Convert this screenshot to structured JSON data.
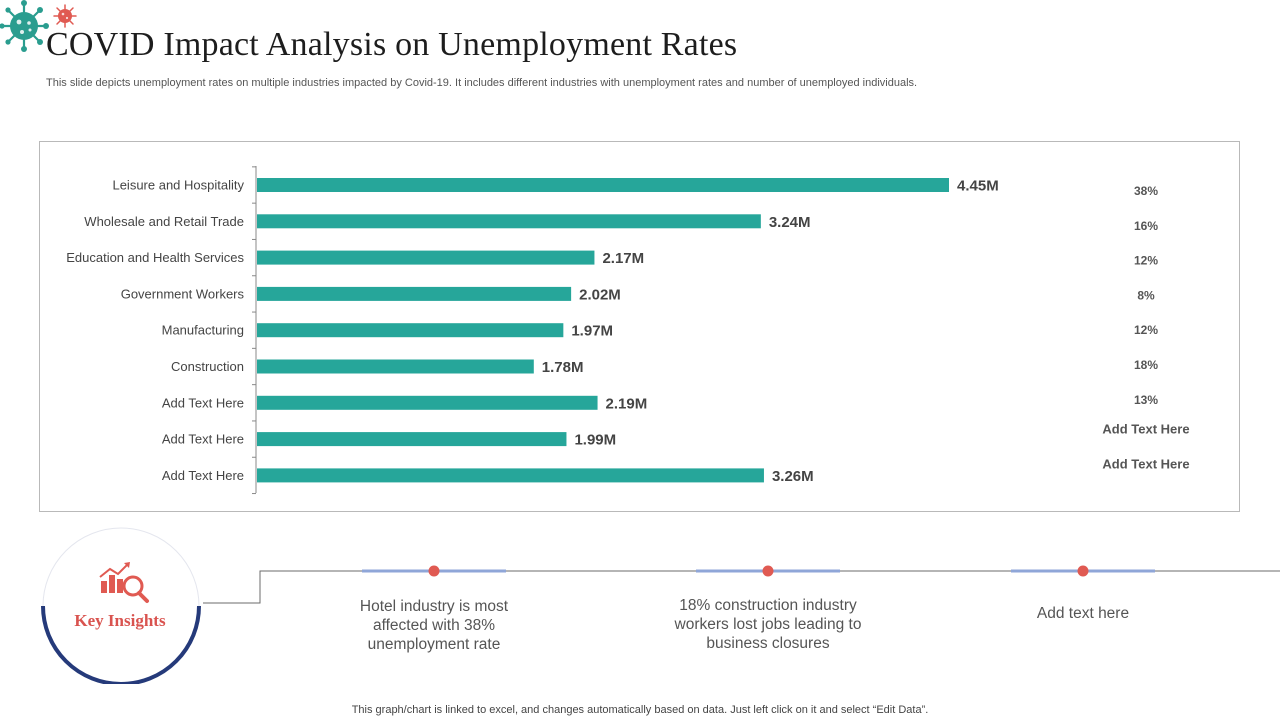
{
  "title": "COVID Impact Analysis on Unemployment Rates",
  "subtitle": "This slide depicts unemployment rates on multiple industries impacted by Covid-19. It includes different industries with unemployment rates and number of unemployed individuals.",
  "colors": {
    "bar": "#26a69a",
    "accent": "#e05a52",
    "navy": "#253a7a",
    "line_blue": "#8fa6d8"
  },
  "chart_data": {
    "type": "bar",
    "orientation": "horizontal",
    "categories": [
      "Leisure and Hospitality",
      "Wholesale and Retail Trade",
      "Education and Health Services",
      "Government Workers",
      "Manufacturing",
      "Construction",
      "Add Text Here",
      "Add Text Here",
      "Add Text Here"
    ],
    "values": [
      4.45,
      3.24,
      2.17,
      2.02,
      1.97,
      1.78,
      2.19,
      1.99,
      3.26
    ],
    "value_labels": [
      "4.45M",
      "3.24M",
      "2.17M",
      "2.02M",
      "1.97M",
      "1.78M",
      "2.19M",
      "1.99M",
      "3.26M"
    ],
    "rates": [
      "38%",
      "16%",
      "12%",
      "8%",
      "12%",
      "18%",
      "13%",
      "Add Text Here",
      "Add Text Here"
    ],
    "xlim": [
      0,
      5.0
    ],
    "grid": false,
    "legend": "none"
  },
  "insights": {
    "label": "Key Insights",
    "items": [
      "Hotel industry is most affected with 38% unemployment  rate",
      "18% construction  industry workers lost jobs leading to business closures",
      "Add text here"
    ]
  },
  "footer": "This graph/chart is linked to excel,  and changes automatically based on data. Just left click on it and select “Edit Data”."
}
